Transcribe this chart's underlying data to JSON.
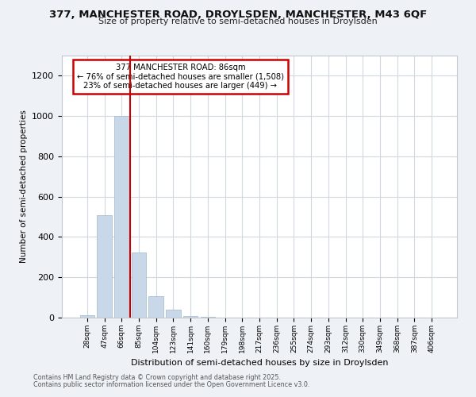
{
  "title1": "377, MANCHESTER ROAD, DROYLSDEN, MANCHESTER, M43 6QF",
  "title2": "Size of property relative to semi-detached houses in Droylsden",
  "xlabel": "Distribution of semi-detached houses by size in Droylsden",
  "ylabel": "Number of semi-detached properties",
  "categories": [
    "28sqm",
    "47sqm",
    "66sqm",
    "85sqm",
    "104sqm",
    "123sqm",
    "141sqm",
    "160sqm",
    "179sqm",
    "198sqm",
    "217sqm",
    "236sqm",
    "255sqm",
    "274sqm",
    "293sqm",
    "312sqm",
    "330sqm",
    "349sqm",
    "368sqm",
    "387sqm",
    "406sqm"
  ],
  "values": [
    10,
    510,
    1000,
    325,
    105,
    40,
    8,
    2,
    0,
    0,
    0,
    0,
    0,
    0,
    0,
    0,
    0,
    0,
    0,
    0,
    0
  ],
  "bar_color": "#c8d8e8",
  "bar_edge_color": "#a0b8cc",
  "marker_bar_index": 3,
  "marker_color": "#cc0000",
  "ylim": [
    0,
    1300
  ],
  "yticks": [
    0,
    200,
    400,
    600,
    800,
    1000,
    1200
  ],
  "annotation_title": "377 MANCHESTER ROAD: 86sqm",
  "annotation_line1": "← 76% of semi-detached houses are smaller (1,508)",
  "annotation_line2": "23% of semi-detached houses are larger (449) →",
  "annotation_box_bg": "#ffffff",
  "annotation_box_edge": "#cc0000",
  "footer1": "Contains HM Land Registry data © Crown copyright and database right 2025.",
  "footer2": "Contains public sector information licensed under the Open Government Licence v3.0.",
  "grid_color": "#d0d8e0",
  "fig_bg_color": "#eef2f6"
}
